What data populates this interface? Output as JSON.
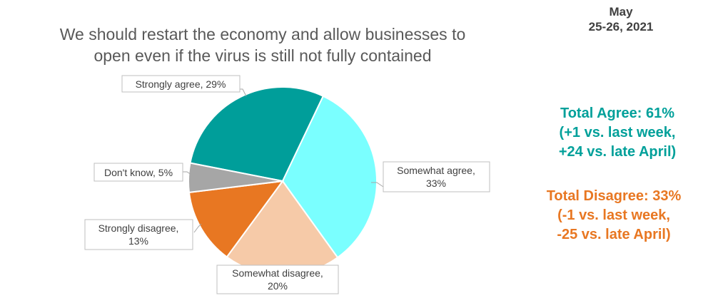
{
  "date": {
    "month": "May",
    "range": "25-26, 2021"
  },
  "chart_data": {
    "type": "pie",
    "title_lines": [
      "We should restart the economy and allow businesses to",
      "open even if the virus is still not fully contained"
    ],
    "slices": [
      {
        "category": "Strongly agree",
        "value": 29,
        "label_lines": [
          "Strongly agree, 29%"
        ],
        "color": "#009e9a"
      },
      {
        "category": "Somewhat agree",
        "value": 33,
        "label_lines": [
          "Somewhat agree,",
          "33%"
        ],
        "color": "#7affff"
      },
      {
        "category": "Somewhat disagree",
        "value": 20,
        "label_lines": [
          "Somewhat disagree,",
          "20%"
        ],
        "color": "#f6caa8"
      },
      {
        "category": "Strongly disagree",
        "value": 13,
        "label_lines": [
          "Strongly disagree,",
          "13%"
        ],
        "color": "#e87722"
      },
      {
        "category": "Don't know",
        "value": 5,
        "label_lines": [
          "Don't know, 5%"
        ],
        "color": "#a6a6a6"
      }
    ]
  },
  "summary": {
    "agree": {
      "color": "#00a09a",
      "lines": [
        "Total Agree: 61%",
        "(+1 vs. last week,",
        "+24 vs. late April)"
      ]
    },
    "disagree": {
      "color": "#e87722",
      "lines": [
        "Total Disagree: 33%",
        "(-1 vs. last week,",
        "-25 vs. late April)"
      ]
    }
  }
}
